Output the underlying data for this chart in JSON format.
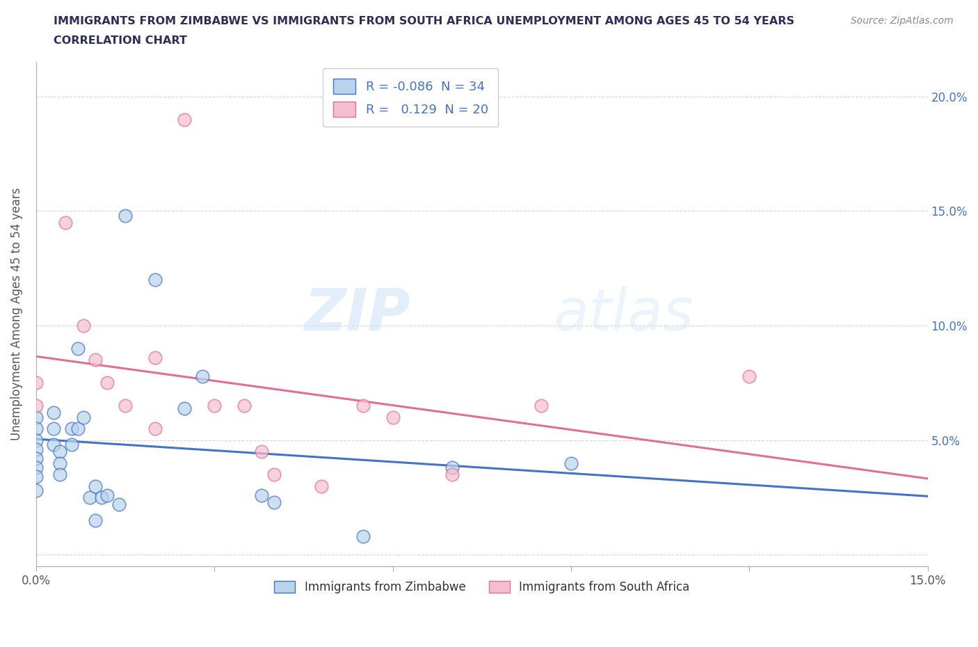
{
  "title_line1": "IMMIGRANTS FROM ZIMBABWE VS IMMIGRANTS FROM SOUTH AFRICA UNEMPLOYMENT AMONG AGES 45 TO 54 YEARS",
  "title_line2": "CORRELATION CHART",
  "source": "Source: ZipAtlas.com",
  "ylabel": "Unemployment Among Ages 45 to 54 years",
  "xlim": [
    0.0,
    0.15
  ],
  "ylim": [
    -0.005,
    0.215
  ],
  "r_zimbabwe": "-0.086",
  "n_zimbabwe": "34",
  "r_south_africa": "0.129",
  "n_south_africa": "20",
  "color_zimbabwe": "#b8d4ea",
  "color_south_africa": "#f5bece",
  "line_color_zimbabwe": "#4472c4",
  "line_color_south_africa": "#e07090",
  "zimbabwe_x": [
    0.0,
    0.0,
    0.0,
    0.0,
    0.0,
    0.0,
    0.0,
    0.0,
    0.003,
    0.003,
    0.003,
    0.004,
    0.004,
    0.004,
    0.006,
    0.006,
    0.007,
    0.007,
    0.008,
    0.009,
    0.01,
    0.01,
    0.011,
    0.012,
    0.014,
    0.015,
    0.02,
    0.025,
    0.028,
    0.038,
    0.04,
    0.055,
    0.07,
    0.09
  ],
  "zimbabwe_y": [
    0.06,
    0.055,
    0.05,
    0.046,
    0.042,
    0.038,
    0.034,
    0.028,
    0.062,
    0.055,
    0.048,
    0.045,
    0.04,
    0.035,
    0.055,
    0.048,
    0.09,
    0.055,
    0.06,
    0.025,
    0.015,
    0.03,
    0.025,
    0.026,
    0.022,
    0.148,
    0.12,
    0.064,
    0.078,
    0.026,
    0.023,
    0.008,
    0.038,
    0.04
  ],
  "south_africa_x": [
    0.0,
    0.0,
    0.005,
    0.008,
    0.01,
    0.012,
    0.015,
    0.02,
    0.02,
    0.025,
    0.03,
    0.035,
    0.038,
    0.04,
    0.048,
    0.055,
    0.06,
    0.07,
    0.085,
    0.12
  ],
  "south_africa_y": [
    0.075,
    0.065,
    0.145,
    0.1,
    0.085,
    0.075,
    0.065,
    0.086,
    0.055,
    0.19,
    0.065,
    0.065,
    0.045,
    0.035,
    0.03,
    0.065,
    0.06,
    0.035,
    0.065,
    0.078
  ],
  "watermark_zip": "ZIP",
  "watermark_atlas": "atlas",
  "legend_label_zimbabwe": "Immigrants from Zimbabwe",
  "legend_label_south_africa": "Immigrants from South Africa",
  "background_color": "#ffffff",
  "grid_color": "#cccccc"
}
